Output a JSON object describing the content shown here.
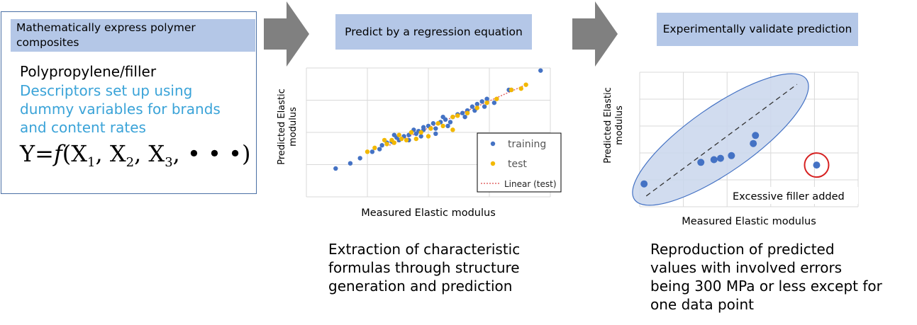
{
  "panel1": {
    "header": "Mathematically express polymer composites",
    "line1": "Polypropylene/filler",
    "blue_text": "Descriptors set up using dummy variables for brands and content rates",
    "formula": {
      "lhs": "Y",
      "eq": "=",
      "fn": "f",
      "open": "(",
      "x": "X",
      "s1": "1",
      "s2": "2",
      "s3": "3",
      "comma": ",",
      "tail": "• • •)"
    }
  },
  "panel2": {
    "header": "Predict by a regression equation",
    "caption": "Extraction of characteristic formulas through structure generation and prediction"
  },
  "panel3": {
    "header": "Experimentally validate prediction",
    "caption": "Reproduction of predicted values with involved errors being 300 MPa or less except for one data point"
  },
  "chart_data": [
    {
      "type": "scatter",
      "xlabel": "Measured Elastic modulus",
      "ylabel": "Predicted Elastic modulus",
      "legend": [
        "training",
        "test",
        "Linear (test)"
      ],
      "legend_position": "bottom-right",
      "grid": true,
      "xlim": [
        0,
        100
      ],
      "ylim": [
        0,
        100
      ],
      "colors": {
        "training": "#4472c4",
        "test": "#f2b800",
        "trend": "#e06666"
      },
      "series": [
        {
          "name": "training",
          "points": [
            [
              12,
              22
            ],
            [
              18,
              26
            ],
            [
              27,
              35
            ],
            [
              30,
              37
            ],
            [
              31,
              40
            ],
            [
              33,
              42
            ],
            [
              35,
              43
            ],
            [
              37,
              46
            ],
            [
              38,
              44
            ],
            [
              40,
              47
            ],
            [
              42,
              48
            ],
            [
              44,
              52
            ],
            [
              45,
              49
            ],
            [
              46,
              51
            ],
            [
              48,
              54
            ],
            [
              50,
              55
            ],
            [
              52,
              57
            ],
            [
              53,
              53
            ],
            [
              55,
              58
            ],
            [
              57,
              60
            ],
            [
              60,
              62
            ],
            [
              62,
              64
            ],
            [
              64,
              65
            ],
            [
              66,
              67
            ],
            [
              68,
              70
            ],
            [
              70,
              72
            ],
            [
              72,
              74
            ],
            [
              74,
              76
            ],
            [
              22,
              30
            ],
            [
              36,
              48
            ],
            [
              48,
              52
            ],
            [
              56,
              62
            ],
            [
              59,
              58
            ],
            [
              65,
              62
            ],
            [
              69,
              67
            ],
            [
              73,
              70
            ],
            [
              77,
              73
            ],
            [
              96,
              98
            ],
            [
              83,
              83
            ],
            [
              84,
              83
            ],
            [
              42,
              44
            ],
            [
              47,
              47
            ],
            [
              53,
              49
            ],
            [
              58,
              55
            ]
          ]
        },
        {
          "name": "test",
          "points": [
            [
              25,
              35
            ],
            [
              28,
              38
            ],
            [
              33,
              41
            ],
            [
              36,
              42
            ],
            [
              39,
              45
            ],
            [
              41,
              44
            ],
            [
              43,
              50
            ],
            [
              47,
              50
            ],
            [
              51,
              53
            ],
            [
              54,
              57
            ],
            [
              56,
              55
            ],
            [
              60,
              62
            ],
            [
              62,
              63
            ],
            [
              66,
              65
            ],
            [
              70,
              69
            ],
            [
              74,
              73
            ],
            [
              78,
              76
            ],
            [
              84,
              83
            ],
            [
              88,
              84
            ],
            [
              90,
              87
            ],
            [
              32,
              44
            ],
            [
              35,
              44
            ],
            [
              45,
              45
            ],
            [
              50,
              47
            ],
            [
              38,
              48
            ],
            [
              60,
              52
            ]
          ]
        },
        {
          "name": "Linear (test)",
          "line": [
            [
              34,
              40
            ],
            [
              90,
              87
            ]
          ]
        }
      ]
    },
    {
      "type": "scatter",
      "xlabel": "Measured Elastic modulus",
      "ylabel": "Predicted Elastic modulus",
      "grid": true,
      "xlim": [
        0,
        100
      ],
      "ylim": [
        0,
        100
      ],
      "annotation": "Excessive filler added",
      "series": [
        {
          "name": "",
          "points": [
            [
              2,
              17
            ],
            [
              28,
              33
            ],
            [
              34,
              35
            ],
            [
              37,
              36
            ],
            [
              42,
              38
            ],
            [
              52,
              47
            ],
            [
              53,
              53
            ],
            [
              81,
              31
            ]
          ]
        }
      ],
      "outlier": [
        81,
        31
      ]
    }
  ]
}
